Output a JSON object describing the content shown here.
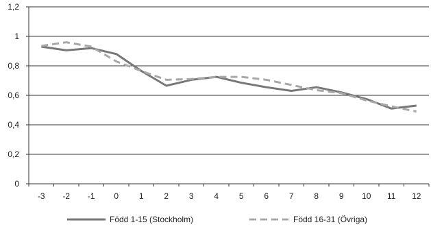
{
  "chart_data": {
    "type": "line",
    "x": [
      -3,
      -2,
      -1,
      0,
      1,
      2,
      3,
      4,
      5,
      6,
      7,
      8,
      9,
      10,
      11,
      12
    ],
    "series": [
      {
        "name": "Född 1-15 (Stockholm)",
        "style": "solid",
        "color": "#777777",
        "values": [
          0.93,
          0.905,
          0.92,
          0.88,
          0.765,
          0.665,
          0.705,
          0.725,
          0.685,
          0.655,
          0.63,
          0.655,
          0.62,
          0.575,
          0.51,
          0.53
        ]
      },
      {
        "name": "Född 16-31 (Övriga)",
        "style": "dashed",
        "color": "#a8a8a8",
        "values": [
          0.935,
          0.96,
          0.93,
          0.83,
          0.765,
          0.705,
          0.71,
          0.725,
          0.725,
          0.705,
          0.67,
          0.635,
          0.615,
          0.565,
          0.525,
          0.49
        ]
      }
    ],
    "ylim": [
      0,
      1.2
    ],
    "yticks": [
      "0",
      "0,2",
      "0,4",
      "0,6",
      "0,8",
      "1",
      "1,2"
    ],
    "xticks": [
      "-3",
      "-2",
      "-1",
      "0",
      "1",
      "2",
      "3",
      "4",
      "5",
      "6",
      "7",
      "8",
      "9",
      "10",
      "11",
      "12"
    ],
    "grid": "horizontal",
    "legend_position": "bottom",
    "title": "",
    "xlabel": "",
    "ylabel": ""
  }
}
